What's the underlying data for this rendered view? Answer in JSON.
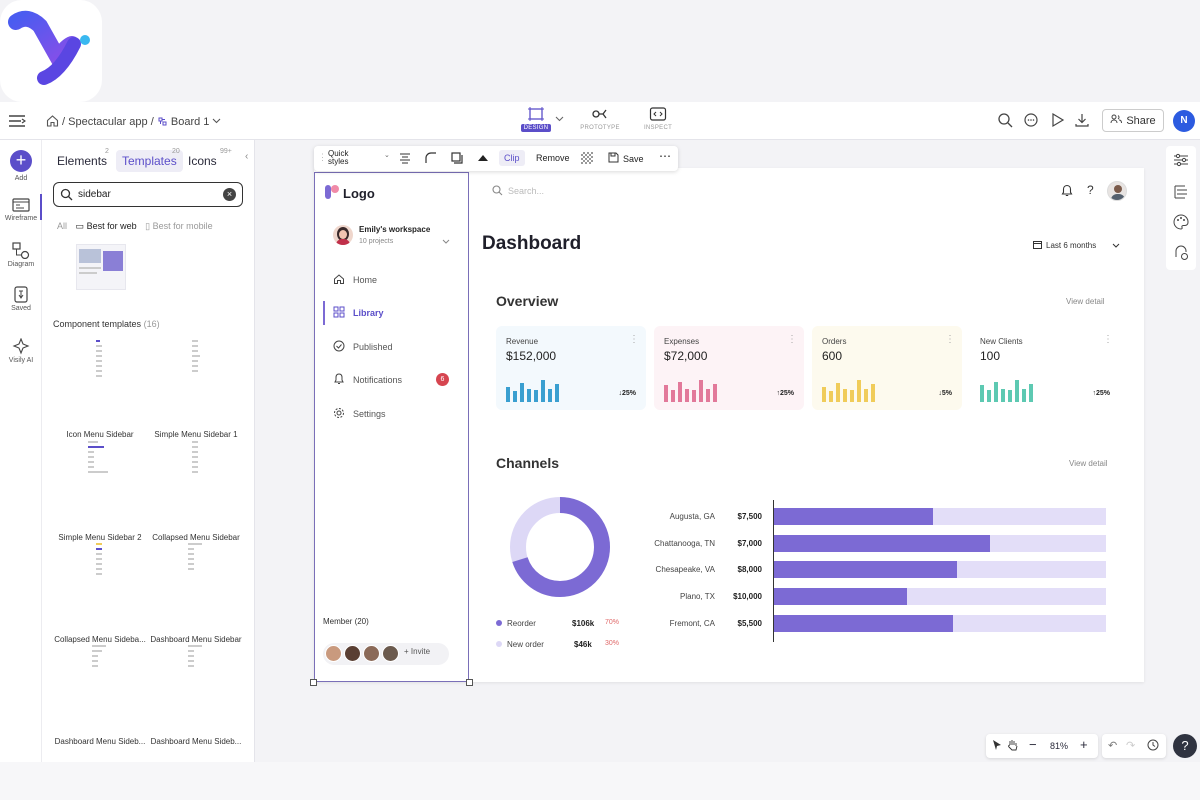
{
  "app": {
    "name": "Visily"
  },
  "topbar": {
    "breadcrumb_project": "Spectacular app",
    "breadcrumb_board": "Board 1",
    "separator": "/",
    "modes": [
      {
        "label": "DESIGN",
        "active": true
      },
      {
        "label": "PROTOTYPE",
        "active": false
      },
      {
        "label": "INSPECT",
        "active": false
      }
    ],
    "share_label": "Share",
    "avatar_initial": "N"
  },
  "leftrail": {
    "items": [
      {
        "label": "Add",
        "icon": "plus-icon"
      },
      {
        "label": "Wireframe",
        "icon": "wireframe-icon"
      },
      {
        "label": "Diagram",
        "icon": "diagram-icon"
      },
      {
        "label": "Saved",
        "icon": "saved-icon"
      },
      {
        "label": "Visily AI",
        "icon": "sparkle-icon"
      }
    ]
  },
  "panel": {
    "tabs": [
      {
        "label": "Elements",
        "count": "2"
      },
      {
        "label": "Templates",
        "count": "20"
      },
      {
        "label": "Icons",
        "count": "99+"
      }
    ],
    "search_value": "sidebar",
    "filters": {
      "all": "All",
      "web": "Best for web",
      "mobile": "Best for mobile"
    },
    "section_title": "Component templates",
    "section_count": "(16)",
    "templates": [
      "Icon Menu Sidebar",
      "Simple Menu Sidebar 1",
      "Simple Menu Sidebar 2",
      "Collapsed Menu Sidebar",
      "Collapsed Menu Sideba...",
      "Dashboard Menu Sidebar",
      "Dashboard Menu Sideb...",
      "Dashboard Menu Sideb..."
    ]
  },
  "toolbar": {
    "quick_styles": "Quick styles",
    "clip": "Clip",
    "remove": "Remove",
    "save": "Save"
  },
  "design": {
    "logo": "Logo",
    "workspace_name": "Emily's workspace",
    "workspace_sub": "10 projects",
    "nav": [
      {
        "label": "Home",
        "icon": "home-icon",
        "active": false
      },
      {
        "label": "Library",
        "icon": "library-icon",
        "active": true
      },
      {
        "label": "Published",
        "icon": "check-circle-icon",
        "active": false
      },
      {
        "label": "Notifications",
        "icon": "bell-icon",
        "active": false,
        "badge": "6"
      },
      {
        "label": "Settings",
        "icon": "gear-icon",
        "active": false
      }
    ],
    "members_label": "Member (20)",
    "invite_label": "Invite",
    "search_placeholder": "Search...",
    "page_title": "Dashboard",
    "date_range": "Last 6 months",
    "overview_title": "Overview",
    "view_detail": "View detail",
    "kpis": [
      {
        "label": "Revenue",
        "value": "$152,000",
        "change": "25%",
        "direction": "down",
        "color": "#3a9fd0",
        "bg": "#f3f9fd",
        "bars": [
          0.7,
          0.5,
          0.85,
          0.6,
          0.55,
          1.0,
          0.6,
          0.8
        ]
      },
      {
        "label": "Expenses",
        "value": "$72,000",
        "change": "25%",
        "direction": "up",
        "color": "#e2799a",
        "bg": "#fdf3f6",
        "bars": [
          0.75,
          0.55,
          0.9,
          0.6,
          0.55,
          1.0,
          0.6,
          0.8
        ]
      },
      {
        "label": "Orders",
        "value": "600",
        "change": "5%",
        "direction": "down",
        "color": "#f0cc5a",
        "bg": "#fdfaee",
        "bars": [
          0.7,
          0.5,
          0.85,
          0.6,
          0.55,
          1.0,
          0.6,
          0.8
        ]
      },
      {
        "label": "New Clients",
        "value": "100",
        "change": "25%",
        "direction": "up",
        "color": "#5dc9b2",
        "bg": "#ffffff",
        "bars": [
          0.75,
          0.55,
          0.9,
          0.6,
          0.55,
          1.0,
          0.6,
          0.8
        ]
      }
    ],
    "channels_title": "Channels",
    "donut": {
      "items": [
        {
          "label": "Reorder",
          "value": "$106k",
          "pct": "70%",
          "share": 0.7,
          "color": "#7c6ad4"
        },
        {
          "label": "New order",
          "value": "$46k",
          "pct": "30%",
          "share": 0.3,
          "color": "#ddd8f6"
        }
      ]
    },
    "cities": [
      {
        "name": "Augusta, GA",
        "value": "$7,500",
        "share": 0.48
      },
      {
        "name": "Chattanooga, TN",
        "value": "$7,000",
        "share": 0.65
      },
      {
        "name": "Chesapeake, VA",
        "value": "$8,000",
        "share": 0.55
      },
      {
        "name": "Plano, TX",
        "value": "$10,000",
        "share": 0.4
      },
      {
        "name": "Fremont, CA",
        "value": "$5,500",
        "share": 0.54
      }
    ]
  },
  "zoom": {
    "level": "81%"
  }
}
